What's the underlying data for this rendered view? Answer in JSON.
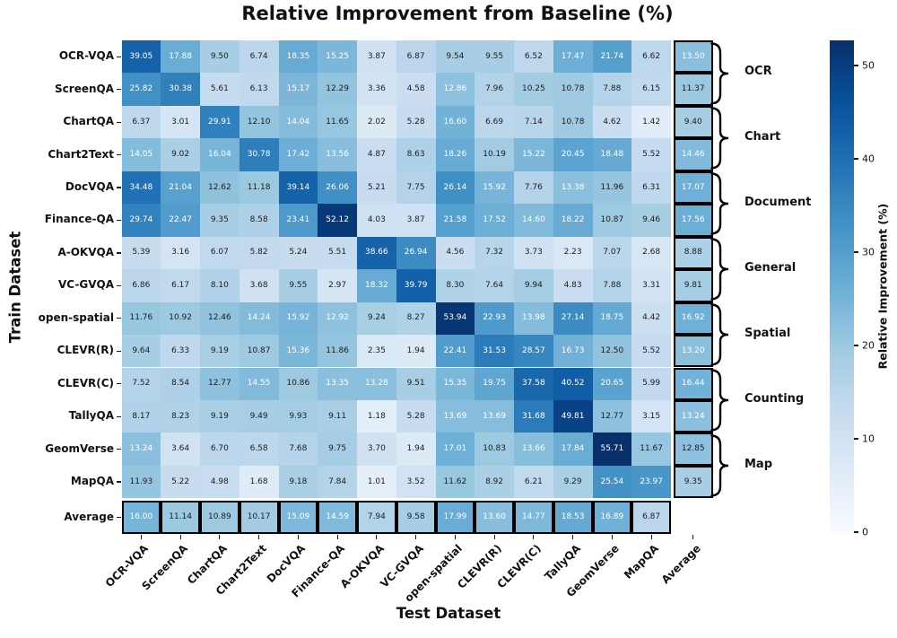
{
  "chart_data": {
    "type": "heatmap",
    "title": "Relative Improvement from Baseline (%)",
    "xlabel": "Test Dataset",
    "ylabel": "Train Dataset",
    "x_categories": [
      "OCR-VQA",
      "ScreenQA",
      "ChartQA",
      "Chart2Text",
      "DocVQA",
      "Finance-QA",
      "A-OKVQA",
      "VC-GVQA",
      "open-spatial",
      "CLEVR(R)",
      "CLEVR(C)",
      "TallyQA",
      "GeomVerse",
      "MapQA",
      "Average"
    ],
    "y_categories": [
      "OCR-VQA",
      "ScreenQA",
      "ChartQA",
      "Chart2Text",
      "DocVQA",
      "Finance-QA",
      "A-OKVQA",
      "VC-GVQA",
      "open-spatial",
      "CLEVR(R)",
      "CLEVR(C)",
      "TallyQA",
      "GeomVerse",
      "MapQA",
      "Average"
    ],
    "matrix": [
      [
        39.05,
        17.88,
        9.5,
        6.74,
        18.35,
        15.25,
        3.87,
        6.87,
        9.54,
        9.55,
        6.52,
        17.47,
        21.74,
        6.62,
        13.5
      ],
      [
        25.82,
        30.38,
        5.61,
        6.13,
        15.17,
        12.29,
        3.36,
        4.58,
        12.86,
        7.96,
        10.25,
        10.78,
        7.88,
        6.15,
        11.37
      ],
      [
        6.37,
        3.01,
        29.91,
        12.1,
        14.04,
        11.65,
        2.02,
        5.28,
        16.6,
        6.69,
        7.14,
        10.78,
        4.62,
        1.42,
        9.4
      ],
      [
        14.05,
        9.02,
        16.04,
        30.78,
        17.42,
        13.56,
        4.87,
        8.63,
        18.26,
        10.19,
        15.22,
        20.45,
        18.48,
        5.52,
        14.46
      ],
      [
        34.48,
        21.04,
        12.62,
        11.18,
        39.14,
        26.06,
        5.21,
        7.75,
        26.14,
        15.92,
        7.76,
        13.38,
        11.96,
        6.31,
        17.07
      ],
      [
        29.74,
        22.47,
        9.35,
        8.58,
        23.41,
        52.12,
        4.03,
        3.87,
        21.58,
        17.52,
        14.6,
        18.22,
        10.87,
        9.46,
        17.56
      ],
      [
        5.39,
        3.16,
        6.07,
        5.82,
        5.24,
        5.51,
        38.66,
        26.94,
        4.56,
        7.32,
        3.73,
        2.23,
        7.07,
        2.68,
        8.88
      ],
      [
        6.86,
        6.17,
        8.1,
        3.68,
        9.55,
        2.97,
        18.32,
        39.79,
        8.3,
        7.64,
        9.94,
        4.83,
        7.88,
        3.31,
        9.81
      ],
      [
        11.76,
        10.92,
        12.46,
        14.24,
        15.92,
        12.92,
        9.24,
        8.27,
        53.94,
        22.93,
        13.98,
        27.14,
        18.75,
        4.42,
        16.92
      ],
      [
        9.64,
        6.33,
        9.19,
        10.87,
        15.36,
        11.86,
        2.35,
        1.94,
        22.41,
        31.53,
        28.57,
        16.73,
        12.5,
        5.52,
        13.2
      ],
      [
        7.52,
        8.54,
        12.77,
        14.55,
        10.86,
        13.35,
        13.28,
        9.51,
        15.35,
        19.75,
        37.58,
        40.52,
        20.65,
        5.99,
        16.44
      ],
      [
        8.17,
        8.23,
        9.19,
        9.49,
        9.93,
        9.11,
        1.18,
        5.28,
        13.69,
        13.69,
        31.68,
        49.81,
        12.77,
        3.15,
        13.24
      ],
      [
        13.24,
        3.64,
        6.7,
        6.58,
        7.68,
        9.75,
        3.7,
        1.94,
        17.01,
        10.83,
        13.66,
        17.84,
        55.71,
        11.67,
        12.85
      ],
      [
        11.93,
        5.22,
        4.98,
        1.68,
        9.18,
        7.84,
        1.01,
        3.52,
        11.62,
        8.92,
        6.21,
        9.29,
        25.54,
        23.97,
        9.35
      ],
      [
        16.0,
        11.14,
        10.89,
        10.17,
        15.09,
        14.59,
        7.94,
        9.58,
        17.99,
        13.6,
        14.77,
        18.53,
        16.89,
        6.87,
        null
      ]
    ],
    "row_groups": [
      {
        "label": "OCR",
        "rows": [
          "OCR-VQA",
          "ScreenQA"
        ]
      },
      {
        "label": "Chart",
        "rows": [
          "ChartQA",
          "Chart2Text"
        ]
      },
      {
        "label": "Document",
        "rows": [
          "DocVQA",
          "Finance-QA"
        ]
      },
      {
        "label": "General",
        "rows": [
          "A-OKVQA",
          "VC-GVQA"
        ]
      },
      {
        "label": "Spatial",
        "rows": [
          "open-spatial",
          "CLEVR(R)"
        ]
      },
      {
        "label": "Counting",
        "rows": [
          "CLEVR(C)",
          "TallyQA"
        ]
      },
      {
        "label": "Map",
        "rows": [
          "GeomVerse",
          "MapQA"
        ]
      }
    ],
    "colorbar": {
      "label": "Relative Improvement (%)",
      "ticks": [
        0,
        10,
        20,
        30,
        40,
        50
      ]
    },
    "value_range": [
      0,
      55.71
    ],
    "palette": {
      "name": "Blues",
      "stops": [
        "#f7fbff",
        "#deebf7",
        "#c6dbef",
        "#9ecae1",
        "#6baed6",
        "#4292c6",
        "#2171b5",
        "#08519c",
        "#08306b"
      ],
      "annot_dark_text": "#1c1c1c",
      "annot_light_text": "#ffffff"
    },
    "layout": {
      "grid": "off",
      "legend": "colorbar-right",
      "annotated": true
    }
  }
}
